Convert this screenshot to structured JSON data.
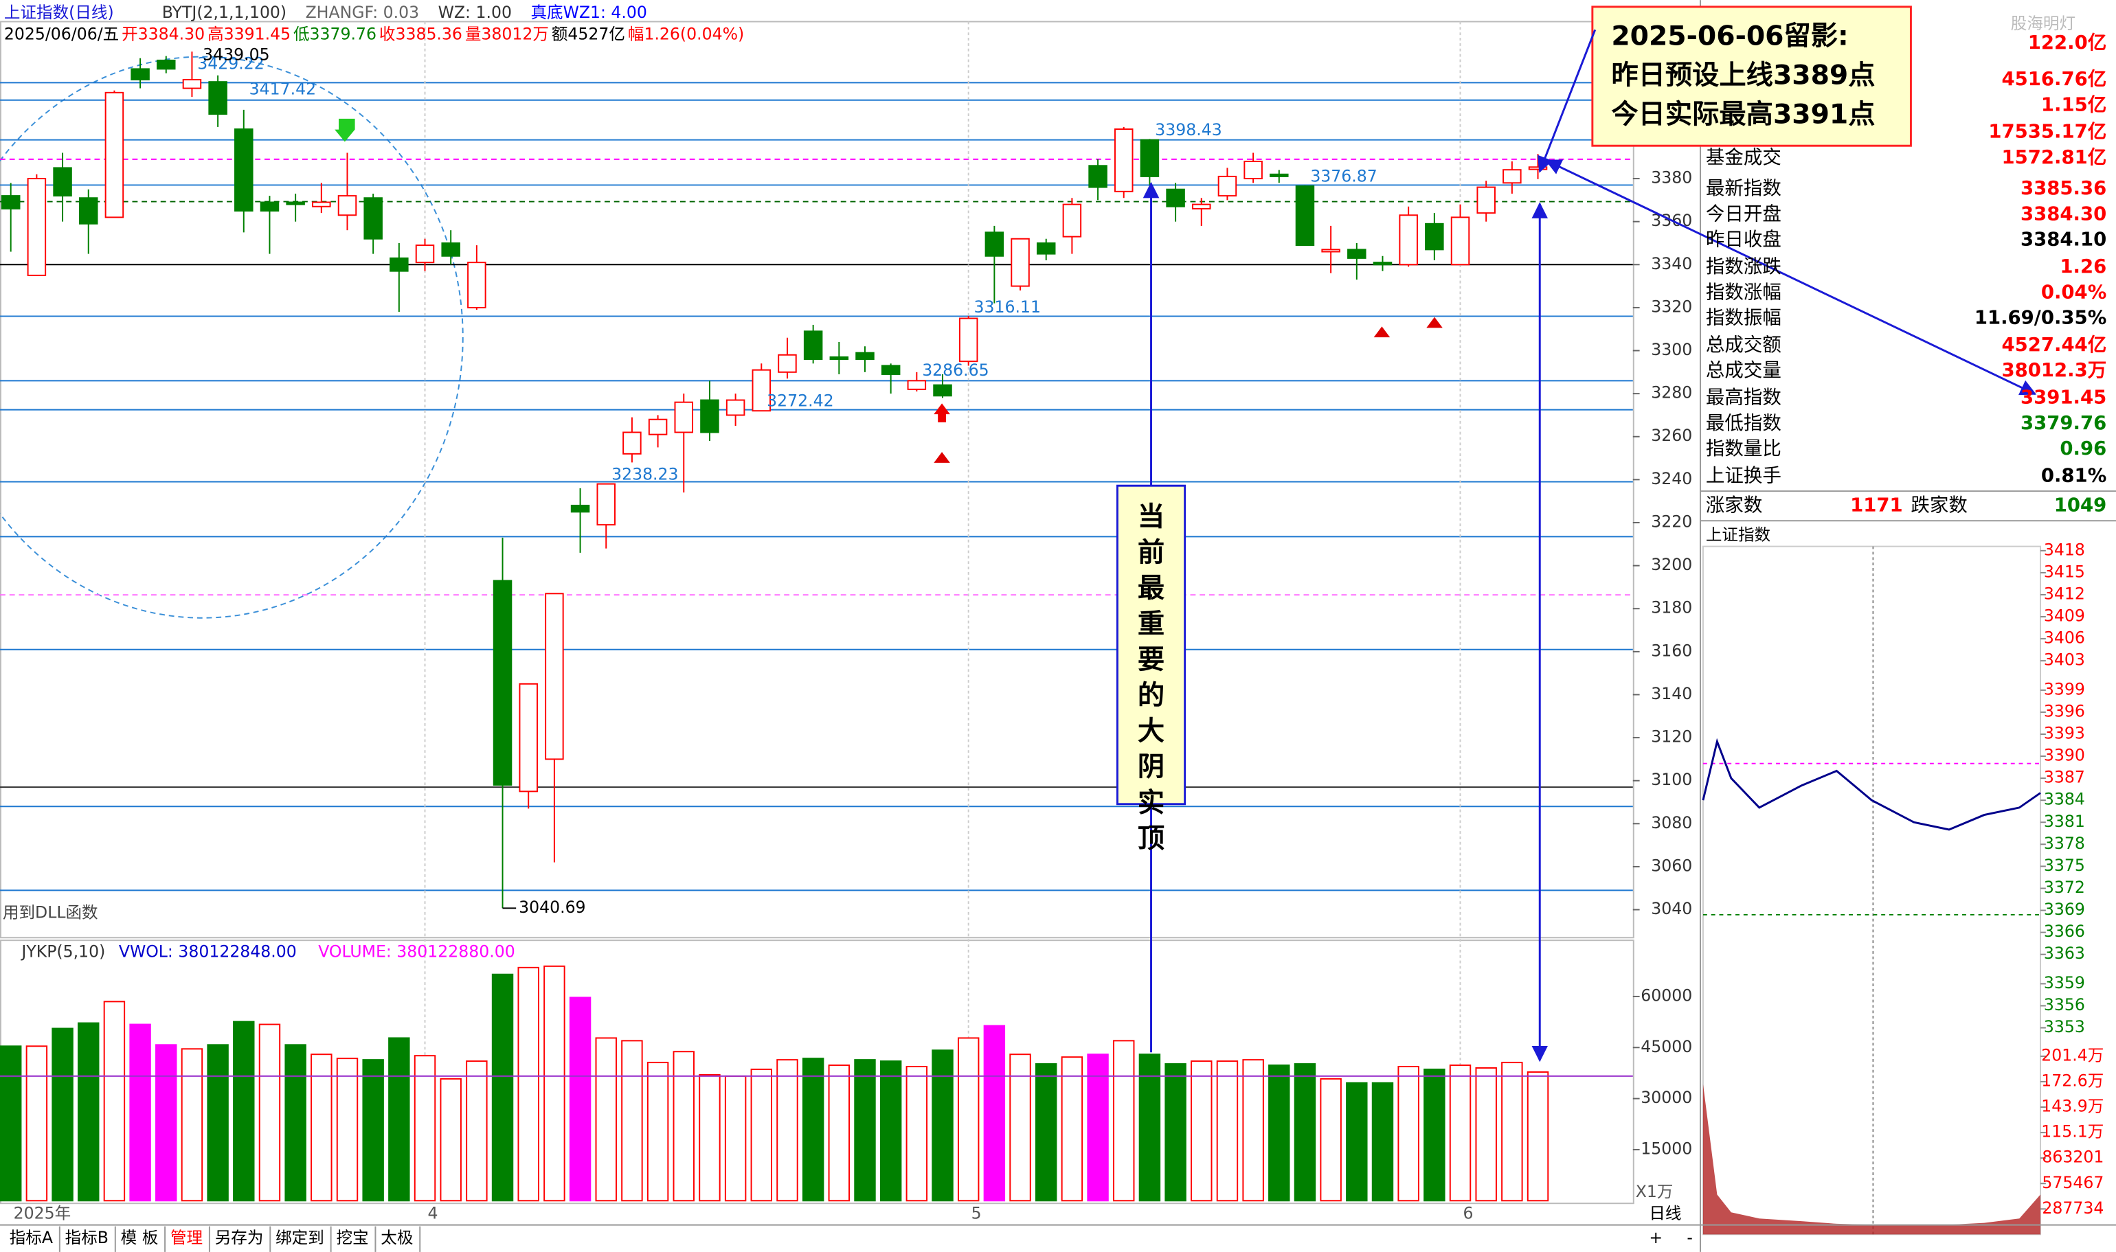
{
  "header": {
    "title": "上证指数(日线)",
    "items": [
      {
        "text": "BYTJ(2,1,1,100)",
        "color": "#333333"
      },
      {
        "text": "ZHANGF: 0.03",
        "color": "#666666"
      },
      {
        "text": "WZ: 1.00",
        "color": "#333333"
      },
      {
        "text": "真底WZ1: 4.00",
        "color": "#0000ff"
      }
    ],
    "quote": [
      {
        "text": "2025/06/06/五",
        "color": "#000000"
      },
      {
        "text": "开3384.30",
        "color": "#ff0000"
      },
      {
        "text": "高3391.45",
        "color": "#ff0000"
      },
      {
        "text": "低3379.76",
        "color": "#008000"
      },
      {
        "text": "收3385.36",
        "color": "#ff0000"
      },
      {
        "text": "量38012万",
        "color": "#ff0000"
      },
      {
        "text": "额4527亿",
        "color": "#000000"
      },
      {
        "text": "幅1.26(0.04%)",
        "color": "#ff0000"
      }
    ],
    "watermark": "股海明灯"
  },
  "chart_data": [
    {
      "type": "candlestick",
      "up_color": "#ff0000",
      "down_color": "#008000",
      "open": [
        3372,
        3335,
        3385,
        3371,
        3362,
        3431,
        3435,
        3422,
        3425,
        3403,
        3369,
        3369,
        3367,
        3363,
        3371,
        3343,
        3341,
        3350,
        3320,
        3193,
        3095,
        3110,
        3228,
        3219,
        3252,
        3261,
        3262,
        3277,
        3270,
        3272,
        3290,
        3309,
        3297,
        3299,
        3293,
        3282,
        3284,
        3295,
        3355,
        3330,
        3350,
        3353,
        3386,
        3374,
        3398,
        3375,
        3366,
        3372,
        3380,
        3382,
        3376.5,
        3346,
        3347,
        3341,
        3340,
        3359,
        3340,
        3364,
        3378,
        3384.3
      ],
      "high": [
        3378,
        3382,
        3392,
        3375,
        3421,
        3436,
        3437,
        3439.05,
        3428,
        3412,
        3372,
        3373,
        3378,
        3392,
        3373,
        3350,
        3352,
        3356,
        3349,
        3213,
        3145,
        3187,
        3236,
        3238,
        3269,
        3270,
        3280,
        3286,
        3280,
        3294,
        3306,
        3312,
        3304,
        3302,
        3294,
        3290,
        3289,
        3316.11,
        3358,
        3352,
        3352,
        3371,
        3389,
        3404,
        3398.43,
        3378,
        3371,
        3385,
        3392,
        3384,
        3376.87,
        3358,
        3350,
        3344,
        3367,
        3364,
        3368,
        3379,
        3388,
        3391.45
      ],
      "low": [
        3346,
        3335,
        3360,
        3345,
        3362,
        3422,
        3429,
        3418,
        3404,
        3355,
        3345,
        3360,
        3364,
        3356,
        3345,
        3318,
        3337,
        3340,
        3319,
        3040.69,
        3087,
        3062,
        3206,
        3208,
        3248,
        3255,
        3234,
        3258,
        3265,
        3272.42,
        3287,
        3294,
        3289,
        3290,
        3280,
        3281,
        3278,
        3293,
        3322,
        3328,
        3342,
        3345,
        3370,
        3371,
        3374,
        3360,
        3358,
        3370,
        3378,
        3378,
        3349,
        3336,
        3333,
        3337,
        3339,
        3342,
        3340,
        3360,
        3373,
        3379.76
      ],
      "close": [
        3366,
        3380,
        3372,
        3359,
        3420,
        3426,
        3431,
        3426,
        3410,
        3365,
        3365,
        3368,
        3369,
        3372,
        3352,
        3337,
        3349,
        3344,
        3341,
        3098,
        3145,
        3187,
        3225,
        3238,
        3262,
        3268,
        3276,
        3262,
        3277,
        3291,
        3298,
        3296,
        3296,
        3296,
        3289,
        3286,
        3279,
        3315,
        3344,
        3352,
        3345,
        3368,
        3376,
        3403,
        3381,
        3367,
        3368,
        3381,
        3388,
        3381,
        3349,
        3347,
        3343,
        3340,
        3363,
        3347,
        3362,
        3376,
        3384.1,
        3385.36
      ],
      "ylim": [
        3027,
        3453
      ],
      "yticks": [
        3040,
        3060,
        3080,
        3100,
        3120,
        3140,
        3160,
        3180,
        3200,
        3220,
        3240,
        3260,
        3280,
        3300,
        3320,
        3340,
        3360,
        3380
      ],
      "xticks": [
        {
          "value": 0,
          "label": "2025年"
        },
        {
          "value": 16,
          "label": "4"
        },
        {
          "value": 37,
          "label": "5"
        },
        {
          "value": 56,
          "label": "6"
        }
      ],
      "levels": [
        {
          "value": 3424.6,
          "color": "#1e78d0"
        },
        {
          "value": 3416.5,
          "color": "#1e78d0"
        },
        {
          "value": 3398,
          "color": "#1e78d0"
        },
        {
          "value": 3377,
          "color": "#1e78d0"
        },
        {
          "value": 3340,
          "color": "#000000"
        },
        {
          "value": 3316,
          "color": "#1e78d0"
        },
        {
          "value": 3286,
          "color": "#1e78d0"
        },
        {
          "value": 3272.5,
          "color": "#1e78d0"
        },
        {
          "value": 3239,
          "color": "#1e78d0"
        },
        {
          "value": 3213.5,
          "color": "#1e78d0"
        },
        {
          "value": 3161,
          "color": "#1e78d0"
        },
        {
          "value": 3097,
          "color": "#333333"
        },
        {
          "value": 3088,
          "color": "#1e78d0"
        },
        {
          "value": 3049,
          "color": "#1e78d0"
        },
        {
          "value": 3389,
          "color": "#ff00ff",
          "dash": true
        },
        {
          "value": 3369.3,
          "color": "#006400",
          "dash": true
        },
        {
          "value": 3186.4,
          "color": "#ff66ff",
          "dash": true
        }
      ],
      "level_labels": [
        {
          "value": 3429.22,
          "at": 7
        },
        {
          "value": 3417.42,
          "at": 9
        },
        {
          "value": 3398.43,
          "at": 44
        },
        {
          "value": 3376.87,
          "at": 50
        },
        {
          "value": 3316.11,
          "at": 37
        },
        {
          "value": 3286.65,
          "at": 35
        },
        {
          "value": 3272.42,
          "at": 29
        },
        {
          "value": 3238.23,
          "at": 23
        }
      ],
      "high_at": 7,
      "low_at": 19,
      "note": "用到DLL函数"
    },
    {
      "type": "bar",
      "title": "JYKP(5,10)",
      "items": [
        {
          "text": "VWOL: 380122848.00",
          "color": "#0000cc"
        },
        {
          "text": "VOLUME: 380122880.00",
          "color": "#ff00ff"
        }
      ],
      "values": [
        45400,
        45400,
        50600,
        52200,
        58500,
        51800,
        45800,
        44600,
        45800,
        52600,
        51800,
        45800,
        43000,
        41800,
        41400,
        47800,
        42600,
        35800,
        41000,
        66500,
        68500,
        68900,
        59700,
        47800,
        47000,
        40600,
        43800,
        37000,
        36600,
        38600,
        41400,
        41800,
        39800,
        41400,
        41000,
        39400,
        44200,
        47800,
        51400,
        43000,
        40200,
        42200,
        43000,
        47000,
        43000,
        40200,
        41000,
        41000,
        41400,
        39800,
        40200,
        35800,
        34600,
        34600,
        39400,
        38600,
        39800,
        39000,
        40600,
        37800
      ],
      "colors": [
        "#008000",
        "#ff0000",
        "#008000",
        "#008000",
        "#ff0000",
        "#ff00ff",
        "#ff00ff",
        "#ff0000",
        "#008000",
        "#008000",
        "#ff0000",
        "#008000",
        "#ff0000",
        "#ff0000",
        "#008000",
        "#008000",
        "#ff0000",
        "#ff0000",
        "#ff0000",
        "#008000",
        "#ff0000",
        "#ff0000",
        "#ff00ff",
        "#ff0000",
        "#ff0000",
        "#ff0000",
        "#ff0000",
        "#ff0000",
        "#ff0000",
        "#ff0000",
        "#ff0000",
        "#008000",
        "#ff0000",
        "#008000",
        "#008000",
        "#ff0000",
        "#008000",
        "#ff0000",
        "#ff00ff",
        "#ff0000",
        "#008000",
        "#ff0000",
        "#ff00ff",
        "#ff0000",
        "#008000",
        "#008000",
        "#ff0000",
        "#ff0000",
        "#ff0000",
        "#008000",
        "#008000",
        "#ff0000",
        "#008000",
        "#008000",
        "#ff0000",
        "#008000",
        "#ff0000",
        "#ff0000",
        "#ff0000",
        "#ff0000"
      ],
      "ylim": [
        0,
        76500
      ],
      "yticks": [
        15000,
        30000,
        45000,
        60000
      ],
      "level": 36600,
      "unit": "X1万"
    },
    {
      "type": "line",
      "title": "上证指数",
      "color": "#00008b",
      "x": [
        0,
        10,
        20,
        40,
        70,
        95,
        120,
        150,
        175,
        200,
        225,
        240
      ],
      "values": [
        3384,
        3392,
        3387,
        3383,
        3386,
        3388,
        3384,
        3381,
        3380,
        3382,
        3383,
        3385
      ],
      "xlim": [
        0,
        240
      ],
      "ylim": [
        3351.5,
        3419.5
      ],
      "yticks": [
        3418,
        3415,
        3412,
        3409,
        3406,
        3403,
        3399,
        3396,
        3393,
        3390,
        3387,
        3384,
        3381,
        3378,
        3375,
        3372,
        3369,
        3366,
        3363,
        3359,
        3356,
        3353
      ],
      "levels": [
        {
          "value": 3389,
          "color": "#ff00ff"
        },
        {
          "value": 3368.4,
          "color": "#008000"
        }
      ],
      "volume": [
        1700000,
        450000,
        250000,
        180000,
        150000,
        120000,
        110000,
        100000,
        110000,
        130000,
        180000,
        450000
      ],
      "volume_color": "#b22222",
      "volume_ylim": [
        0,
        2211000
      ],
      "volume_ticks": [
        {
          "value": 2014000,
          "label": "201.4万"
        },
        {
          "value": 1726000,
          "label": "172.6万"
        },
        {
          "value": 1439000,
          "label": "143.9万"
        },
        {
          "value": 1151000,
          "label": "115.1万"
        },
        863201,
        575467,
        287734
      ]
    }
  ],
  "side_panel": {
    "rows": [
      {
        "label": null,
        "value": "122.0亿",
        "color": "#ff0000"
      },
      {
        "label": null,
        "value": "4516.76亿",
        "color": "#ff0000"
      },
      {
        "label": null,
        "value": "1.15亿",
        "color": "#ff0000"
      },
      {
        "label": null,
        "value": "17535.17亿",
        "color": "#ff0000"
      },
      {
        "label": "基金成交",
        "value": "1572.81亿",
        "color": "#ff0000"
      },
      {
        "label": "最新指数",
        "value": "3385.36",
        "color": "#ff0000"
      },
      {
        "label": "今日开盘",
        "value": "3384.30",
        "color": "#ff0000"
      },
      {
        "label": "昨日收盘",
        "value": "3384.10",
        "color": "#000000"
      },
      {
        "label": "指数涨跌",
        "value": "1.26",
        "color": "#ff0000"
      },
      {
        "label": "指数涨幅",
        "value": "0.04%",
        "color": "#ff0000"
      },
      {
        "label": "指数振幅",
        "value": "11.69/0.35%",
        "color": "#000000"
      },
      {
        "label": "总成交额",
        "value": "4527.44亿",
        "color": "#ff0000"
      },
      {
        "label": "总成交量",
        "value": "38012.3万",
        "color": "#ff0000"
      },
      {
        "label": "最高指数",
        "value": "3391.45",
        "color": "#ff0000"
      },
      {
        "label": "最低指数",
        "value": "3379.76",
        "color": "#008000"
      },
      {
        "label": "指数量比",
        "value": "0.96",
        "color": "#008000"
      },
      {
        "label": "上证换手",
        "value": "0.81%",
        "color": "#000000"
      }
    ],
    "breadth": {
      "up_label": "涨家数",
      "up": "1171",
      "down_label": "跌家数",
      "down": "1049"
    }
  },
  "annotations": {
    "box": [
      "2025-06-06留影:",
      "昨日预设上线3389点",
      "今日实际最高3391点"
    ],
    "vertical": "当前最重要的大阴实顶"
  },
  "tabs": [
    "指标A",
    "指标B",
    "模 板",
    "管理",
    "另存为",
    "绑定到",
    "挖宝",
    "太极"
  ],
  "period": "日线",
  "zoom": [
    "+",
    "-"
  ]
}
